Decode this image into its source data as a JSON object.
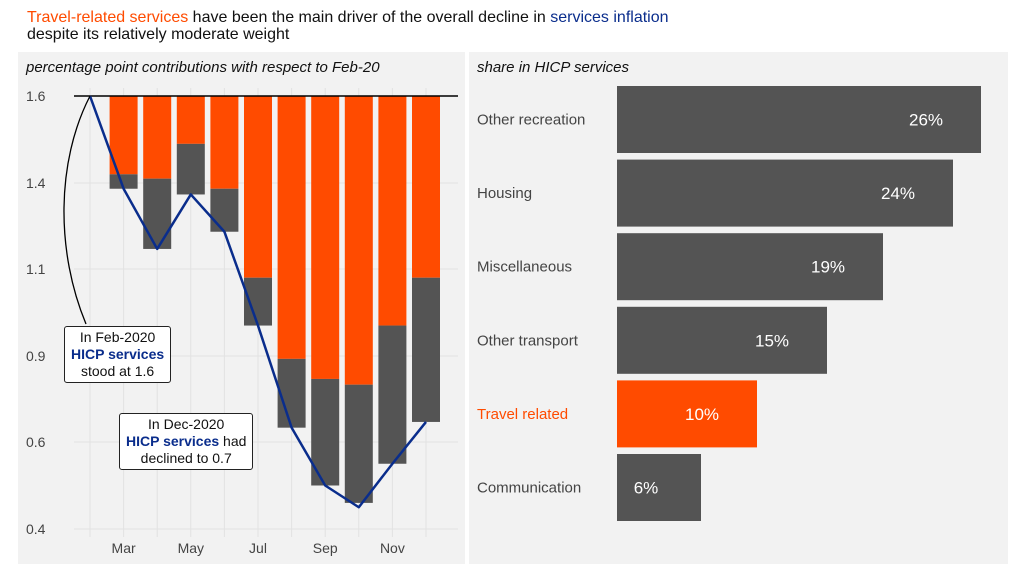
{
  "title": {
    "part1": "Travel-related services",
    "part2": " have been the main driver of the overall decline in ",
    "part3": "services inflation",
    "line2": "despite its relatively moderate weight"
  },
  "left": {
    "subtitle": "percentage point contributions with respect to Feb-20",
    "annotation1": {
      "line1": "In Feb-2020",
      "line2": "HICP services",
      "line3": "stood at 1.6"
    },
    "annotation2": {
      "line1": "In Dec-2020",
      "line2": "HICP services",
      "line2b": " had",
      "line3": "declined to 0.7"
    }
  },
  "right": {
    "subtitle": "share in HICP services"
  },
  "colors": {
    "orange": "#ff4b00",
    "grey": "#545454",
    "blue": "#0a2d8c",
    "panel": "#f2f2f2"
  },
  "chart_data": [
    {
      "type": "bar",
      "y_ticks": [
        1.6,
        1.4,
        1.1,
        0.9,
        0.6,
        0.4
      ],
      "x_ticks": [
        "Mar",
        "May",
        "Jul",
        "Sep",
        "Nov"
      ],
      "baseline": 1.6,
      "series": [
        {
          "name": "Travel-related services",
          "color": "#ff4b00",
          "values": [
            1.42,
            1.41,
            1.49,
            1.38,
            1.08,
            0.89,
            0.82,
            0.8,
            0.97,
            1.08
          ]
        },
        {
          "name": "HICP services",
          "color": "#0a2d8c",
          "values": [
            1.6,
            1.38,
            1.17,
            1.36,
            1.23,
            0.97,
            0.65,
            0.5,
            0.45,
            0.55,
            0.67
          ]
        }
      ],
      "bar_bottoms": [
        1.38,
        1.17,
        1.36,
        1.23,
        0.97,
        0.65,
        0.5,
        0.46,
        0.55,
        0.67
      ]
    },
    {
      "type": "bar",
      "orientation": "horizontal",
      "categories": [
        "Other recreation",
        "Housing",
        "Miscellaneous",
        "Other transport",
        "Travel related",
        "Communication"
      ],
      "values": [
        26,
        24,
        19,
        15,
        10,
        6
      ],
      "labels": [
        "26%",
        "24%",
        "19%",
        "15%",
        "10%",
        "6%"
      ],
      "highlight": "Travel related"
    }
  ]
}
